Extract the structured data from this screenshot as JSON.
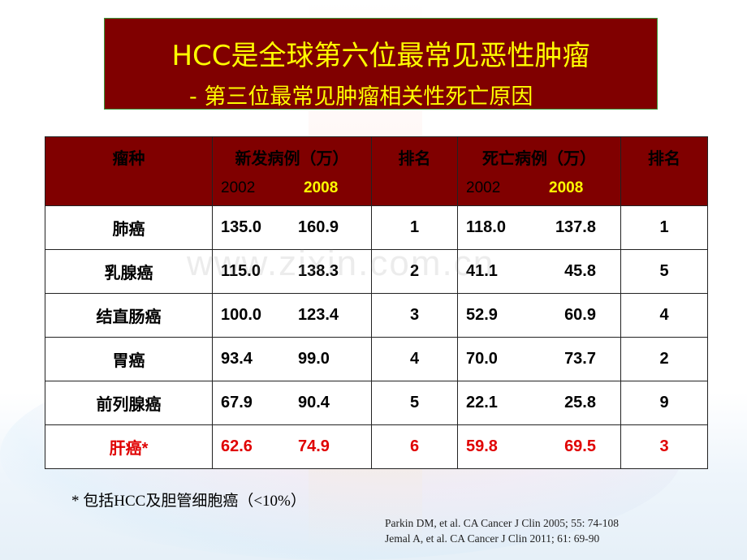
{
  "title": {
    "line1": "HCC是全球第六位最常见恶性肿瘤",
    "line2": "- 第三位最常见肿瘤相关性死亡原因"
  },
  "table": {
    "headers": {
      "tumor": "瘤种",
      "incidence": "新发病例（万）",
      "rank1": "排名",
      "deaths": "死亡病例（万）",
      "rank2": "排名",
      "year1": "2002",
      "year2": "2008"
    },
    "rows": [
      {
        "tumor": "肺癌",
        "inc2002": "135.0",
        "inc2008": "160.9",
        "rank_inc": "1",
        "death2002": "118.0",
        "death2008": "137.8",
        "rank_death": "1"
      },
      {
        "tumor": "乳腺癌",
        "inc2002": "115.0",
        "inc2008": "138.3",
        "rank_inc": "2",
        "death2002": "41.1",
        "death2008": "45.8",
        "rank_death": "5"
      },
      {
        "tumor": "结直肠癌",
        "inc2002": "100.0",
        "inc2008": "123.4",
        "rank_inc": "3",
        "death2002": "52.9",
        "death2008": "60.9",
        "rank_death": "4"
      },
      {
        "tumor": "胃癌",
        "inc2002": "93.4",
        "inc2008": "99.0",
        "rank_inc": "4",
        "death2002": "70.0",
        "death2008": "73.7",
        "rank_death": "2"
      },
      {
        "tumor": "前列腺癌",
        "inc2002": "67.9",
        "inc2008": "90.4",
        "rank_inc": "5",
        "death2002": "22.1",
        "death2008": "25.8",
        "rank_death": "9"
      },
      {
        "tumor": "肝癌*",
        "inc2002": "62.6",
        "inc2008": "74.9",
        "rank_inc": "6",
        "death2002": "59.8",
        "death2008": "69.5",
        "rank_death": "3"
      }
    ]
  },
  "footnote": "* 包括HCC及胆管细胞癌（<10%）",
  "references": [
    "Parkin DM, et al. CA Cancer J Clin 2005; 55: 74-108",
    "Jemal A, et al. CA Cancer J Clin 2011; 61: 69-90"
  ],
  "watermark": "www.zixin.com.cn",
  "colors": {
    "title_bg": "#800000",
    "title_text": "#ffff00",
    "highlight_row": "#e00000"
  }
}
